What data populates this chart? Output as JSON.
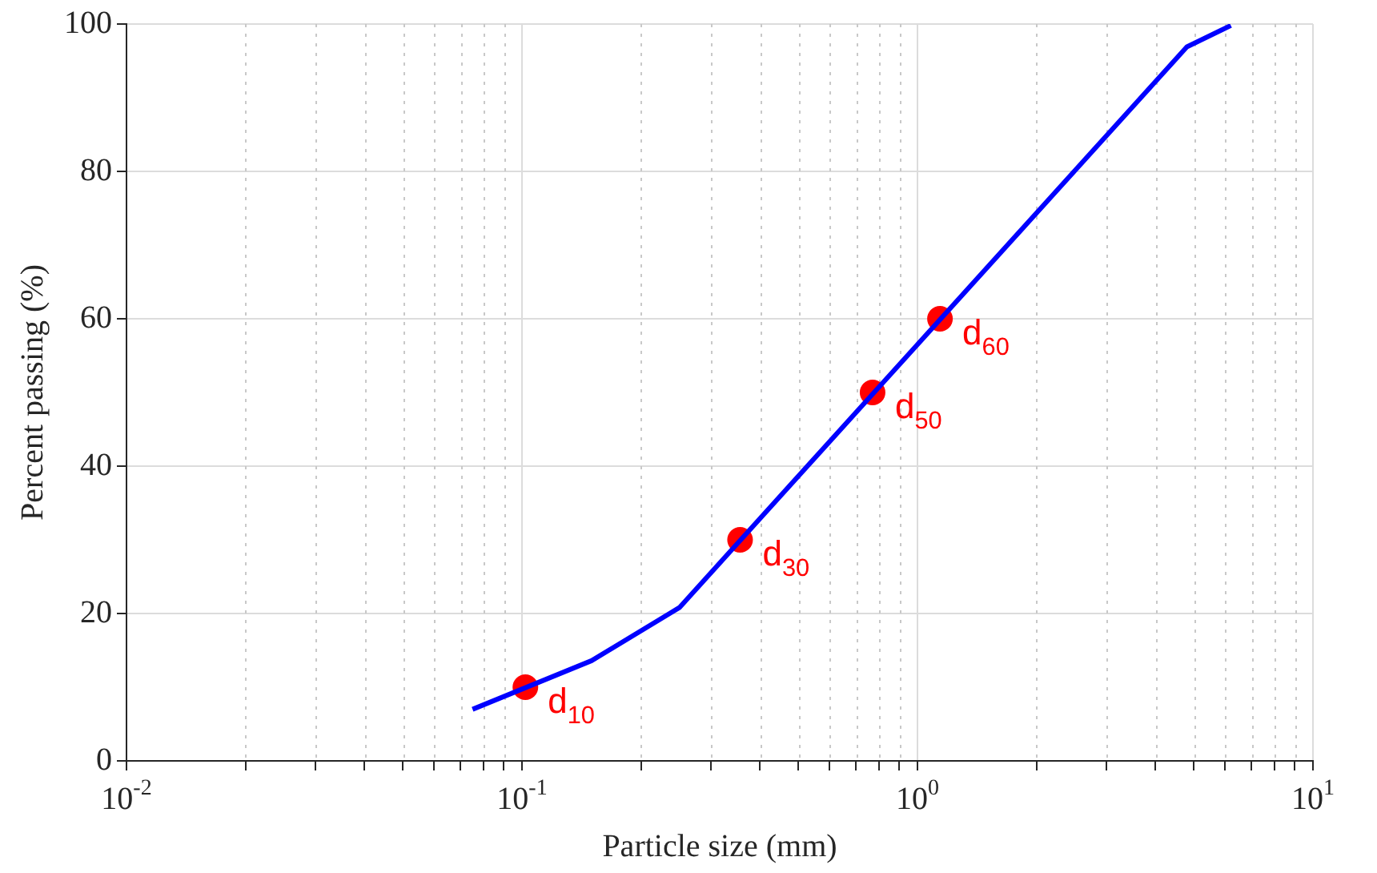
{
  "chart_data": {
    "type": "line",
    "xlabel": "Particle size (mm)",
    "ylabel": "Percent passing (%)",
    "log": "x",
    "grid": true,
    "legend": false,
    "xlim": [
      0.01,
      10
    ],
    "xticks": [
      {
        "value": 0.01,
        "label": "10$^{-2}$"
      },
      {
        "value": 0.02,
        "label": null
      },
      {
        "value": 0.03,
        "label": null
      },
      {
        "value": 0.04,
        "label": null
      },
      {
        "value": 0.05,
        "label": null
      },
      {
        "value": 0.06,
        "label": null
      },
      {
        "value": 0.07,
        "label": null
      },
      {
        "value": 0.08,
        "label": null
      },
      {
        "value": 0.09,
        "label": null
      },
      {
        "value": 0.1,
        "label": "10$^{-1}$"
      },
      {
        "value": 0.2,
        "label": null
      },
      {
        "value": 0.3,
        "label": null
      },
      {
        "value": 0.4,
        "label": null
      },
      {
        "value": 0.5,
        "label": null
      },
      {
        "value": 0.6,
        "label": null
      },
      {
        "value": 0.7,
        "label": null
      },
      {
        "value": 0.8,
        "label": null
      },
      {
        "value": 0.9,
        "label": null
      },
      {
        "value": 1,
        "label": "10$^{0}$"
      },
      {
        "value": 2,
        "label": null
      },
      {
        "value": 3,
        "label": null
      },
      {
        "value": 4,
        "label": null
      },
      {
        "value": 5,
        "label": null
      },
      {
        "value": 6,
        "label": null
      },
      {
        "value": 7,
        "label": null
      },
      {
        "value": 8,
        "label": null
      },
      {
        "value": 9,
        "label": null
      },
      {
        "value": 10,
        "label": "10$^{1}$"
      }
    ],
    "ylim": [
      0,
      100
    ],
    "yticks": [
      0,
      20,
      40,
      60,
      80,
      100
    ],
    "series": [
      {
        "color": "#0000ff",
        "marker": "none",
        "line_style": "solid",
        "x": [
          0.075,
          0.15,
          0.25,
          4.8,
          6.2
        ],
        "values": [
          7,
          13.6,
          20.8,
          96.9,
          99.8
        ]
      },
      {
        "type": "scatter",
        "color": "#ff0000",
        "marker": "circle",
        "x": [
          0.102,
          0.356,
          0.77,
          1.14
        ],
        "values": [
          10,
          30,
          50,
          60
        ]
      }
    ],
    "annotations": [
      {
        "text": "d$_{10}$",
        "x": 0.102,
        "y": 10
      },
      {
        "text": "d$_{30}$",
        "x": 0.356,
        "y": 30
      },
      {
        "text": "d$_{50}$",
        "x": 0.77,
        "y": 50
      },
      {
        "text": "d$_{60}$",
        "x": 1.14,
        "y": 60
      }
    ]
  }
}
